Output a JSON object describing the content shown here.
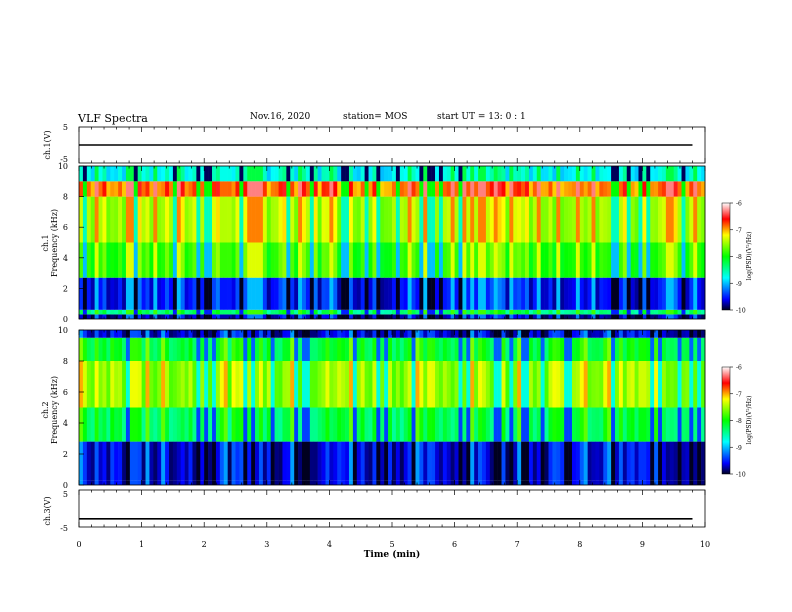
{
  "header": {
    "title": "VLF Spectra",
    "date": "Nov.16, 2020",
    "station": "station= MOS",
    "start": "start  UT  =   13: 0   : 1"
  },
  "chart_data": [
    {
      "type": "line",
      "panel": "ch.1 waveform",
      "ylabel": "ch.1(V)",
      "ylim": [
        -5,
        5
      ],
      "yticks": [
        "5",
        "-5"
      ],
      "xlim": [
        0,
        10
      ],
      "series": [
        {
          "x": [
            0,
            9.8
          ],
          "y": [
            0,
            0
          ]
        }
      ]
    },
    {
      "type": "heatmap",
      "panel": "ch.1 spectrogram",
      "ylabel_line1": "ch.1",
      "ylabel_line2": "Frequency (kHz)",
      "ylim": [
        0,
        10
      ],
      "yticks": [
        "0",
        "2",
        "4",
        "6",
        "8",
        "10"
      ],
      "xlim": [
        0,
        10
      ],
      "colorbar": {
        "label": "log(PSD)(V²/Hz)",
        "range": [
          -10,
          -6
        ],
        "ticks": [
          "-6",
          "-7",
          "-8",
          "-9",
          "-10"
        ]
      },
      "profile": [
        {
          "f": [
            0,
            0.3
          ],
          "v": -9.7
        },
        {
          "f": [
            0.3,
            0.6
          ],
          "v": -8.3
        },
        {
          "f": [
            0.6,
            2.7
          ],
          "v": -9.5
        },
        {
          "f": [
            2.7,
            5.0
          ],
          "v": -7.8
        },
        {
          "f": [
            5.0,
            8.0
          ],
          "v": -7.4
        },
        {
          "f": [
            8.0,
            9.0
          ],
          "v": -6.8
        },
        {
          "f": [
            9.0,
            10
          ],
          "v": -8.7
        }
      ]
    },
    {
      "type": "heatmap",
      "panel": "ch.2 spectrogram",
      "ylabel_line1": "ch.2",
      "ylabel_line2": "Frequency (kHz)",
      "ylim": [
        0,
        10
      ],
      "yticks": [
        "0",
        "2",
        "4",
        "6",
        "8",
        "10"
      ],
      "xlim": [
        0,
        10
      ],
      "colorbar": {
        "label": "log(PSD)(V²/Hz)",
        "range": [
          -10,
          -6
        ],
        "ticks": [
          "-6",
          "-7",
          "-8",
          "-9",
          "-10"
        ]
      },
      "profile": [
        {
          "f": [
            0,
            0.3
          ],
          "v": -9.6
        },
        {
          "f": [
            0.3,
            2.8
          ],
          "v": -9.6
        },
        {
          "f": [
            2.8,
            5.0
          ],
          "v": -8.2
        },
        {
          "f": [
            5.0,
            8.0
          ],
          "v": -7.5
        },
        {
          "f": [
            8.0,
            9.5
          ],
          "v": -8.1
        },
        {
          "f": [
            9.5,
            10
          ],
          "v": -9.6
        }
      ]
    },
    {
      "type": "line",
      "panel": "ch.3 waveform",
      "ylabel": "ch.3(V)",
      "ylim": [
        -5,
        5
      ],
      "yticks": [
        "5",
        "0",
        "-5"
      ],
      "xlim": [
        0,
        10
      ],
      "series": [
        {
          "x": [
            0,
            9.8
          ],
          "y": [
            -2.8,
            -2.8
          ]
        }
      ]
    }
  ],
  "xaxis": {
    "label": "Time (min)",
    "ticks": [
      "0",
      "1",
      "2",
      "3",
      "4",
      "5",
      "6",
      "7",
      "8",
      "9",
      "10"
    ]
  }
}
